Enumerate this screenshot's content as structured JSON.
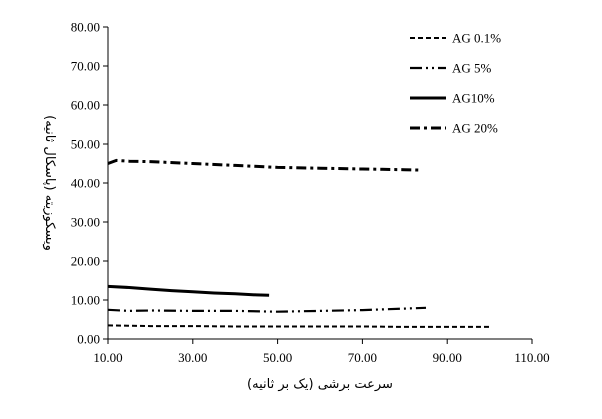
{
  "chart_data": {
    "type": "line",
    "title": "",
    "xlabel": "سرعت برشی (یک بر ثانیه)",
    "ylabel": "ویسکوزیته (پاسکال ثانیه)",
    "xlim": [
      10,
      110
    ],
    "ylim": [
      0,
      80
    ],
    "x_ticks": [
      "10.00",
      "30.00",
      "50.00",
      "70.00",
      "90.00",
      "110.00"
    ],
    "y_ticks": [
      "0.00",
      "10.00",
      "20.00",
      "30.00",
      "40.00",
      "50.00",
      "60.00",
      "70.00",
      "80.00"
    ],
    "grid": false,
    "legend_position": "top-right",
    "series": [
      {
        "name": "AG 0.1%",
        "line_style": "dashed",
        "x": [
          10,
          20,
          30,
          40,
          50,
          60,
          70,
          80,
          90,
          100
        ],
        "y": [
          3.5,
          3.3,
          3.3,
          3.2,
          3.2,
          3.2,
          3.2,
          3.1,
          3.1,
          3.1
        ]
      },
      {
        "name": "AG 5%",
        "line_style": "dash-dot-dot",
        "x": [
          10,
          15,
          20,
          30,
          40,
          50,
          60,
          70,
          80,
          85
        ],
        "y": [
          7.5,
          7.2,
          7.3,
          7.2,
          7.2,
          7.0,
          7.2,
          7.4,
          7.8,
          8.0
        ]
      },
      {
        "name": "AG10%",
        "line_style": "solid",
        "x": [
          10,
          15,
          20,
          25,
          30,
          35,
          40,
          45,
          48
        ],
        "y": [
          13.5,
          13.2,
          12.8,
          12.4,
          12.1,
          11.8,
          11.6,
          11.3,
          11.2
        ]
      },
      {
        "name": "AG 20%",
        "line_style": "dash-dot",
        "x": [
          10,
          12,
          15,
          20,
          30,
          40,
          50,
          60,
          70,
          80,
          84
        ],
        "y": [
          45.0,
          45.8,
          45.6,
          45.5,
          45.0,
          44.5,
          44.0,
          43.8,
          43.6,
          43.4,
          43.3
        ]
      }
    ]
  }
}
